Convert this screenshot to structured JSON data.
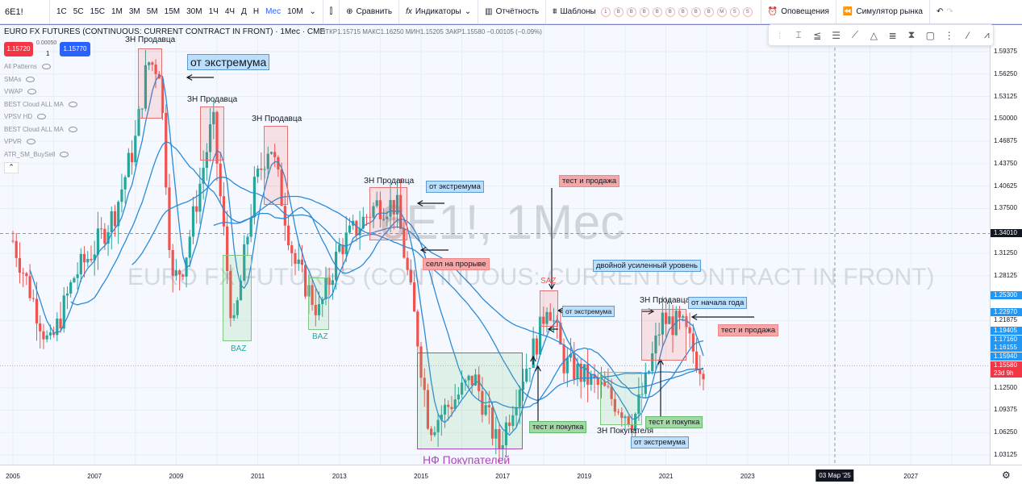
{
  "toolbar": {
    "symbol": "6E1!",
    "timeframes": [
      "1С",
      "5С",
      "15С",
      "1М",
      "3М",
      "5М",
      "15М",
      "30М",
      "1Ч",
      "4Ч",
      "Д",
      "Н",
      "Мес",
      "10М"
    ],
    "active_timeframe": "Мес",
    "compare": "Сравнить",
    "indicators": "Индикаторы",
    "reports": "Отчётность",
    "templates": "Шаблоны",
    "template_slots": [
      "1",
      "B",
      "B",
      "B",
      "B",
      "B",
      "B",
      "B",
      "B",
      "M",
      "S",
      "S"
    ],
    "alerts": "Оповещения",
    "replay": "Симулятор рынка"
  },
  "legend": {
    "title": "EURO FX FUTURES (CONTINUOUS: CURRENT CONTRACT IN FRONT) · 1Мес · CME",
    "ohlc": "ОТКР1.15715 МАКС1.16250 МИН1.15205 ЗАКР1.15580 −0.00105 (−0.09%)",
    "sell_price": "1.15720",
    "spread": "0.00050",
    "qty": "1",
    "buy_price": "1.15770",
    "indicators": [
      "All Patterns",
      "SMAs",
      "VWAP",
      "BEST Cloud ALL MA",
      "VPSV HD",
      "BEST Cloud ALL MA",
      "VPVR",
      "ATR_SM_BuySell"
    ]
  },
  "watermark": {
    "symbol": "6E1!, 1Мес",
    "name": "EURO FX FUTURES (CONTINUOUS: CURRENT CONTRACT IN FRONT)"
  },
  "annotations": {
    "zn_seller": "ЗН Продавца",
    "zn_buyer": "ЗН Покупателя",
    "baz": "BAZ",
    "saz": "SAZ",
    "nf_buyers": "НФ Покупателей",
    "from_extreme": "от экстремума",
    "test_sell": "тест и продажа",
    "sell_breakout": "селл на прорыве",
    "double_level": "двойной усиленный уровень",
    "from_year_start": "от начала года",
    "test_buy": "тест и покупка"
  },
  "price_axis": {
    "labels": [
      "1.59375",
      "1.56250",
      "1.53125",
      "1.50000",
      "1.46875",
      "1.43750",
      "1.40625",
      "1.37500",
      "1.31250",
      "1.28125",
      "1.21875",
      "1.12500",
      "1.09375",
      "1.06250",
      "1.03125"
    ],
    "crosshair": "1.34010",
    "tags": [
      "1.25300",
      "1.22970",
      "1.19405",
      "1.17160",
      "1.16155",
      "1.15940"
    ],
    "last": "1.15580",
    "countdown": "23d 9h"
  },
  "time_axis": {
    "labels": [
      "2005",
      "2007",
      "2009",
      "2011",
      "2013",
      "2015",
      "2017",
      "2019",
      "2021",
      "2023",
      "2027"
    ],
    "crosshair": "03 Мар '25"
  },
  "colors": {
    "up": "#26a69a",
    "down": "#ef5350",
    "ma": "#2b8ad8",
    "accent": "#2962ff"
  },
  "chart_data": {
    "type": "candlestick",
    "approx_close_path": [
      [
        2005.0,
        1.33
      ],
      [
        2005.9,
        1.18
      ],
      [
        2006.5,
        1.28
      ],
      [
        2007.0,
        1.32
      ],
      [
        2007.5,
        1.37
      ],
      [
        2008.0,
        1.47
      ],
      [
        2008.3,
        1.58
      ],
      [
        2008.6,
        1.57
      ],
      [
        2008.9,
        1.27
      ],
      [
        2009.2,
        1.3
      ],
      [
        2009.9,
        1.5
      ],
      [
        2010.4,
        1.2
      ],
      [
        2010.9,
        1.4
      ],
      [
        2011.3,
        1.47
      ],
      [
        2011.9,
        1.3
      ],
      [
        2012.5,
        1.23
      ],
      [
        2013.0,
        1.32
      ],
      [
        2013.9,
        1.38
      ],
      [
        2014.4,
        1.38
      ],
      [
        2014.9,
        1.2
      ],
      [
        2015.2,
        1.07
      ],
      [
        2016.3,
        1.14
      ],
      [
        2016.9,
        1.04
      ],
      [
        2017.4,
        1.13
      ],
      [
        2017.9,
        1.2
      ],
      [
        2018.1,
        1.25
      ],
      [
        2018.5,
        1.16
      ],
      [
        2019.0,
        1.14
      ],
      [
        2019.5,
        1.12
      ],
      [
        2020.2,
        1.08
      ],
      [
        2020.5,
        1.13
      ],
      [
        2020.9,
        1.22
      ],
      [
        2021.4,
        1.21
      ],
      [
        2021.8,
        1.16
      ],
      [
        2021.95,
        1.1558
      ]
    ],
    "ylim": [
      1.015,
      1.61
    ]
  }
}
